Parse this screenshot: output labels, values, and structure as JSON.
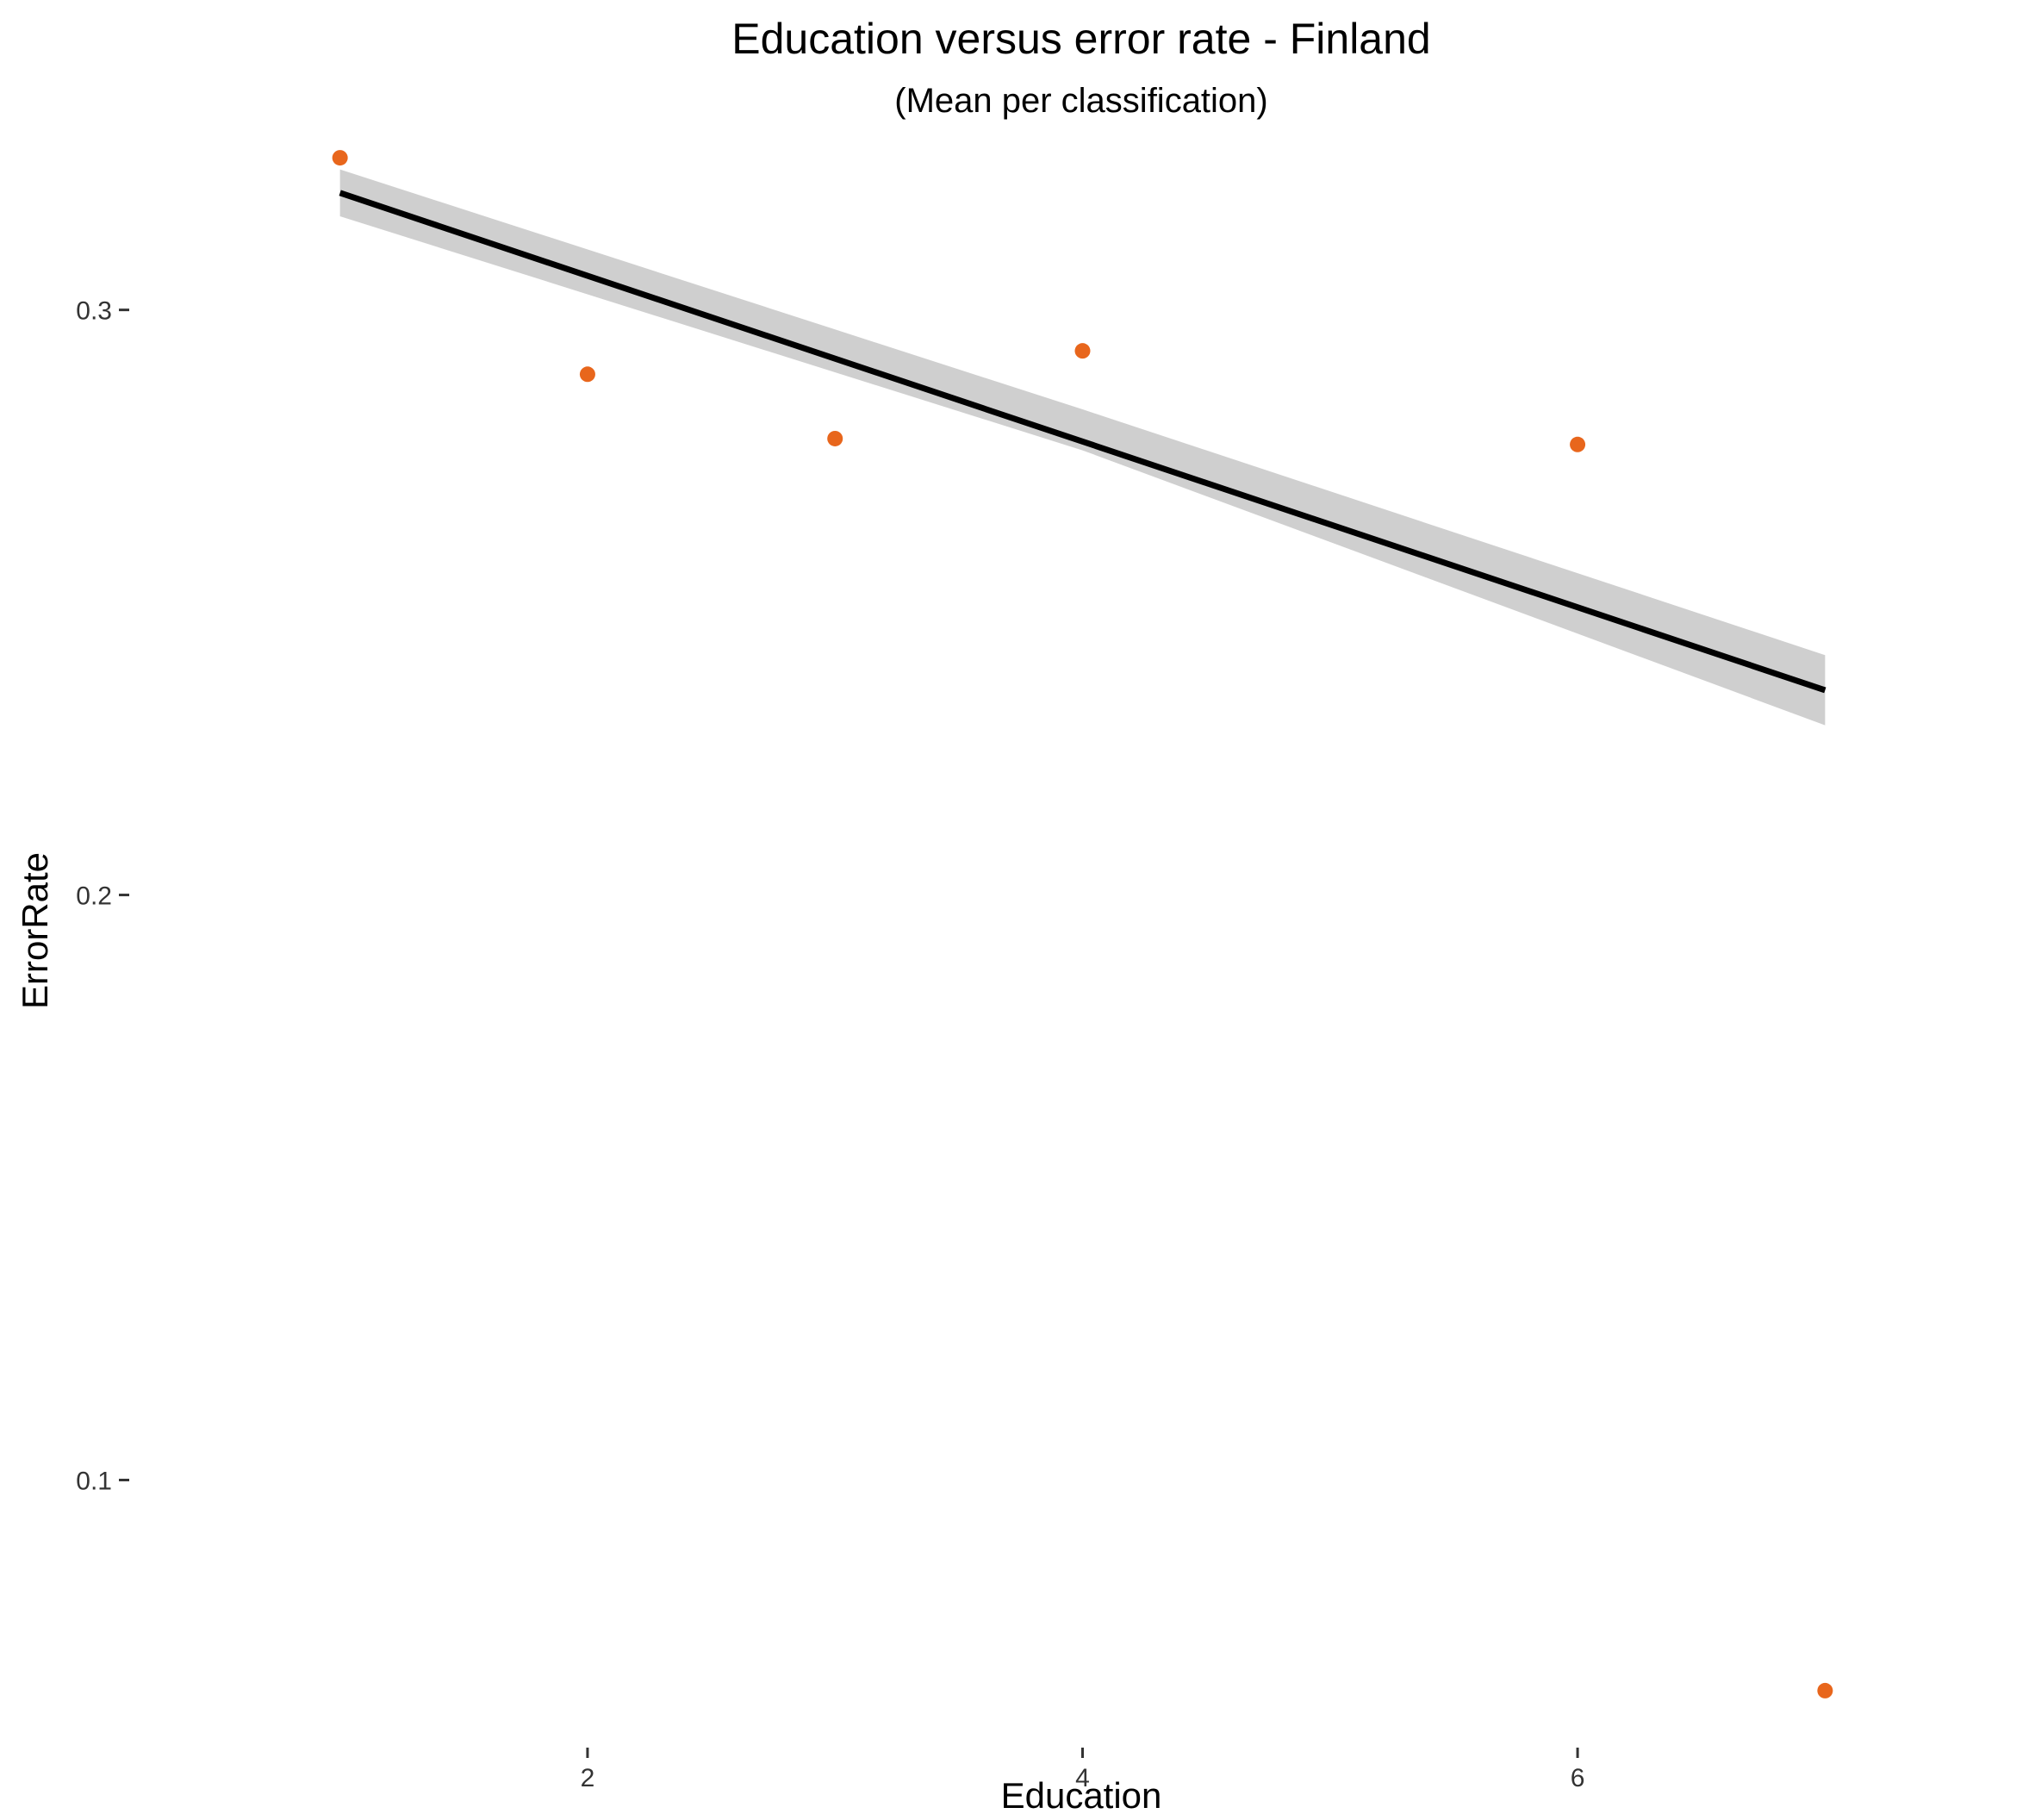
{
  "chart_data": {
    "type": "scatter",
    "title": "Education versus error rate - Finland",
    "subtitle": "(Mean per classification)",
    "xlabel": "Education",
    "ylabel": "ErrorRate",
    "xlim": [
      0.5,
      7.5
    ],
    "ylim": [
      0.055,
      0.335
    ],
    "x_ticks": [
      2,
      4,
      6
    ],
    "y_ticks": [
      0.1,
      0.2,
      0.3
    ],
    "x_tick_labels": [
      "2",
      "4",
      "6"
    ],
    "y_tick_labels": [
      "0.1",
      "0.2",
      "0.3"
    ],
    "grid": false,
    "points": [
      {
        "x": 1,
        "y": 0.326
      },
      {
        "x": 2,
        "y": 0.289
      },
      {
        "x": 3,
        "y": 0.278
      },
      {
        "x": 4,
        "y": 0.293
      },
      {
        "x": 6,
        "y": 0.277
      },
      {
        "x": 7,
        "y": 0.064
      }
    ],
    "trend_line": {
      "x": [
        1,
        7
      ],
      "y": [
        0.32,
        0.235
      ]
    },
    "confidence_band": {
      "x": [
        1,
        4,
        7
      ],
      "lower": [
        0.316,
        0.276,
        0.229
      ],
      "upper": [
        0.324,
        0.283,
        0.241
      ]
    },
    "colors": {
      "points": "#E8661C",
      "line": "#000000",
      "band": "#CFCFCF"
    }
  }
}
